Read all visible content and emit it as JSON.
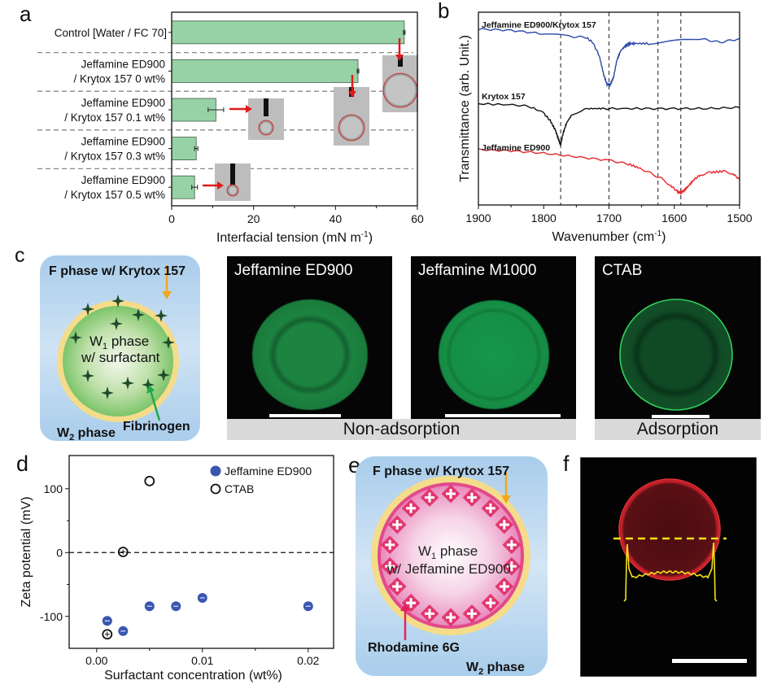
{
  "panels": {
    "a": {
      "letter": "a"
    },
    "b": {
      "letter": "b"
    },
    "c": {
      "letter": "c"
    },
    "d": {
      "letter": "d"
    },
    "e": {
      "letter": "e"
    },
    "f": {
      "letter": "f"
    }
  },
  "chart_data": [
    {
      "id": "a",
      "type": "bar",
      "orientation": "horizontal",
      "categories": [
        [
          "Control [Water / FC 70]"
        ],
        [
          "Jeffamine ED900",
          "/ Krytox 157 0 wt%"
        ],
        [
          "Jeffamine ED900",
          "/ Krytox 157 0.1 wt%"
        ],
        [
          "Jeffamine ED900",
          "/ Krytox 157 0.3 wt%"
        ],
        [
          "Jeffamine ED900",
          "/ Krytox 157 0.5 wt%"
        ]
      ],
      "values": [
        56.8,
        45.5,
        10.8,
        6.0,
        5.6
      ],
      "errors": [
        0.2,
        0.2,
        1.9,
        0.4,
        0.7
      ],
      "xlabel": "Interfacial tension (mN m",
      "xlabel_sup": "-1",
      "xlabel_end": ")",
      "xlim": [
        0,
        60
      ],
      "xticks": [
        0,
        20,
        40,
        60
      ],
      "bar_color": "#97d2a6",
      "insets": [
        "pendant drop 0.5 wt%",
        "pendant drop 0.1 wt%",
        "pendant drop 0 wt%",
        "pendant drop control"
      ]
    },
    {
      "id": "b",
      "type": "line",
      "xlabel": "Wavenumber (cm",
      "xlabel_sup": "-1",
      "xlabel_end": ")",
      "ylabel": "Transmittance (arb. Unit.)",
      "xlim": [
        1900,
        1500
      ],
      "xticks": [
        1900,
        1800,
        1700,
        1600,
        1500
      ],
      "reference_lines": [
        1774,
        1700,
        1625,
        1590
      ],
      "series": [
        {
          "name": "Jeffamine ED900/Krytox 157",
          "color": "#2c4aa8",
          "x": [
            1900,
            1850,
            1800,
            1760,
            1735,
            1725,
            1715,
            1708,
            1703,
            1698,
            1693,
            1688,
            1682,
            1675,
            1668,
            1660,
            1640,
            1600,
            1560,
            1530,
            1500
          ],
          "y": [
            0.93,
            0.925,
            0.91,
            0.9,
            0.895,
            0.875,
            0.82,
            0.74,
            0.7,
            0.7,
            0.73,
            0.8,
            0.84,
            0.86,
            0.87,
            0.87,
            0.87,
            0.88,
            0.89,
            0.875,
            0.89
          ]
        },
        {
          "name": "Krytox 157",
          "color": "#111111",
          "x": [
            1900,
            1840,
            1815,
            1800,
            1790,
            1782,
            1777,
            1774,
            1770,
            1765,
            1758,
            1745,
            1730,
            1710,
            1650,
            1600,
            1550,
            1500
          ],
          "y": [
            0.62,
            0.615,
            0.605,
            0.58,
            0.55,
            0.51,
            0.47,
            0.45,
            0.5,
            0.54,
            0.57,
            0.59,
            0.6,
            0.6,
            0.6,
            0.6,
            0.6,
            0.605
          ]
        },
        {
          "name": "Jeffamine ED900",
          "color": "#e8262b",
          "x": [
            1900,
            1850,
            1800,
            1750,
            1700,
            1670,
            1650,
            1635,
            1620,
            1605,
            1595,
            1590,
            1585,
            1578,
            1570,
            1560,
            1545,
            1525,
            1510,
            1500
          ],
          "y": [
            0.43,
            0.425,
            0.415,
            0.4,
            0.385,
            0.37,
            0.35,
            0.33,
            0.31,
            0.28,
            0.255,
            0.25,
            0.26,
            0.28,
            0.305,
            0.325,
            0.335,
            0.34,
            0.33,
            0.305
          ]
        }
      ],
      "ylim": [
        0.2,
        1.0
      ]
    },
    {
      "id": "d",
      "type": "scatter",
      "xlabel": "Surfactant concentration (wt%)",
      "ylabel": "Zeta potential (mV)",
      "xlim": [
        -0.0026,
        0.0224
      ],
      "ylim": [
        -150,
        152
      ],
      "xticks": [
        "0.00",
        "0.01",
        "0.02"
      ],
      "xtick_values": [
        0,
        0.01,
        0.02
      ],
      "yticks": [
        100,
        0,
        -100
      ],
      "reference_line": 0,
      "series": [
        {
          "name": "Jeffamine ED900",
          "marker": "filled-circle",
          "color": "#3a56b0",
          "x": [
            0.001,
            0.0025,
            0.005,
            0.0075,
            0.01,
            0.02
          ],
          "y": [
            -107,
            -123,
            -84,
            -84,
            -71,
            -84
          ]
        },
        {
          "name": "CTAB",
          "marker": "open-circle",
          "color": "#111111",
          "x": [
            0.001,
            0.0025,
            0.005
          ],
          "y": [
            -128,
            1,
            112
          ]
        }
      ],
      "legend": "top-right"
    }
  ],
  "panel_c": {
    "schematic": {
      "f_phase": "F phase w/ Krytox 157",
      "w1_line1": "W",
      "w1_sub": "1",
      "w1_line1_end": " phase",
      "w1_line2": "w/ surfactant",
      "fibrinogen": "Fibrinogen",
      "w2": "W",
      "w2_sub": "2",
      "w2_end": " phase"
    },
    "micrographs": [
      {
        "label": "Jeffamine ED900"
      },
      {
        "label": "Jeffamine M1000"
      },
      {
        "label": "CTAB"
      }
    ],
    "group_labels": {
      "non": "Non-adsorption",
      "ads": "Adsorption"
    }
  },
  "panel_e": {
    "f_phase": "F phase w/ Krytox 157",
    "w1_a": "W",
    "w1_sub": "1",
    "w1_b": " phase",
    "w1_line2": "w/ Jeffamine ED900",
    "rhodamine": "Rhodamine 6G",
    "w2": "W",
    "w2_sub": "2",
    "w2_end": " phase"
  }
}
